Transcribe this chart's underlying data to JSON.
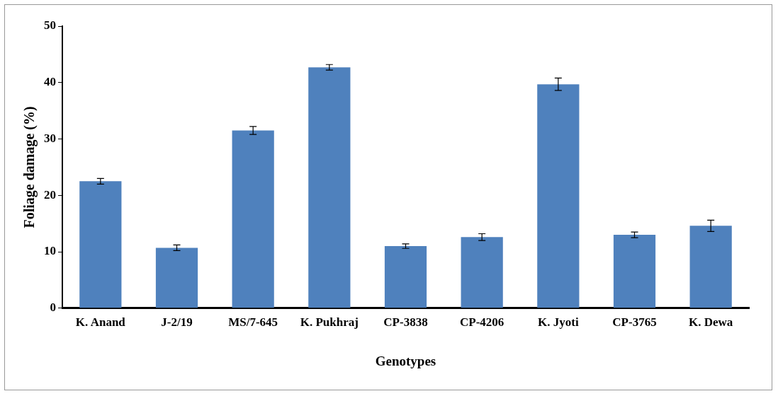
{
  "chart_data": {
    "type": "bar",
    "xlabel": "Genotypes",
    "ylabel": "Foliage damage (%)",
    "categories": [
      "K. Anand",
      "J-2/19",
      "MS/7-645",
      "K. Pukhraj",
      "CP-3838",
      "CP-4206",
      "K. Jyoti",
      "CP-3765",
      "K. Dewa"
    ],
    "values": [
      22.5,
      10.7,
      31.5,
      42.7,
      11.0,
      12.6,
      39.7,
      13.0,
      14.6
    ],
    "errors": [
      0.5,
      0.5,
      0.7,
      0.5,
      0.4,
      0.6,
      1.1,
      0.5,
      1.0
    ],
    "color": "#4f81bd",
    "ylim": [
      0,
      50
    ],
    "yticks": [
      0,
      10,
      20,
      30,
      40,
      50
    ],
    "grid": false,
    "legend": false
  }
}
